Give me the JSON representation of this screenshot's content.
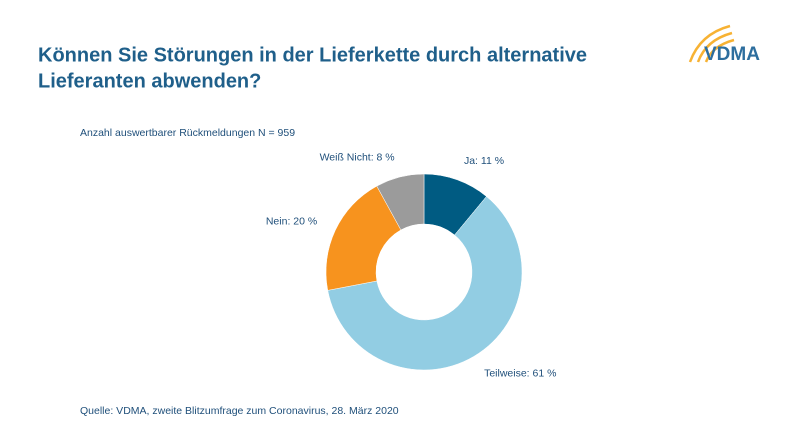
{
  "chart_data": {
    "type": "donut",
    "title": [
      "Können Sie Störungen in der Lieferkette durch alternative",
      "Lieferanten abwenden?"
    ],
    "subtitle": "Anzahl auswertbarer Rückmeldungen N = 959",
    "values": [
      11,
      61,
      20,
      8
    ],
    "value_labels": [
      "Ja: 11 %",
      "Teilweise: 61 %",
      "Nein: 20 %",
      "Weiß Nicht: 8 %"
    ],
    "colors": [
      "#005b82",
      "#92cde3",
      "#f7931e",
      "#9b9b9b"
    ],
    "source": "Quelle: VDMA, zweite Blitzumfrage zum Coronavirus, 28. März 2020",
    "logo": "VDMA"
  }
}
